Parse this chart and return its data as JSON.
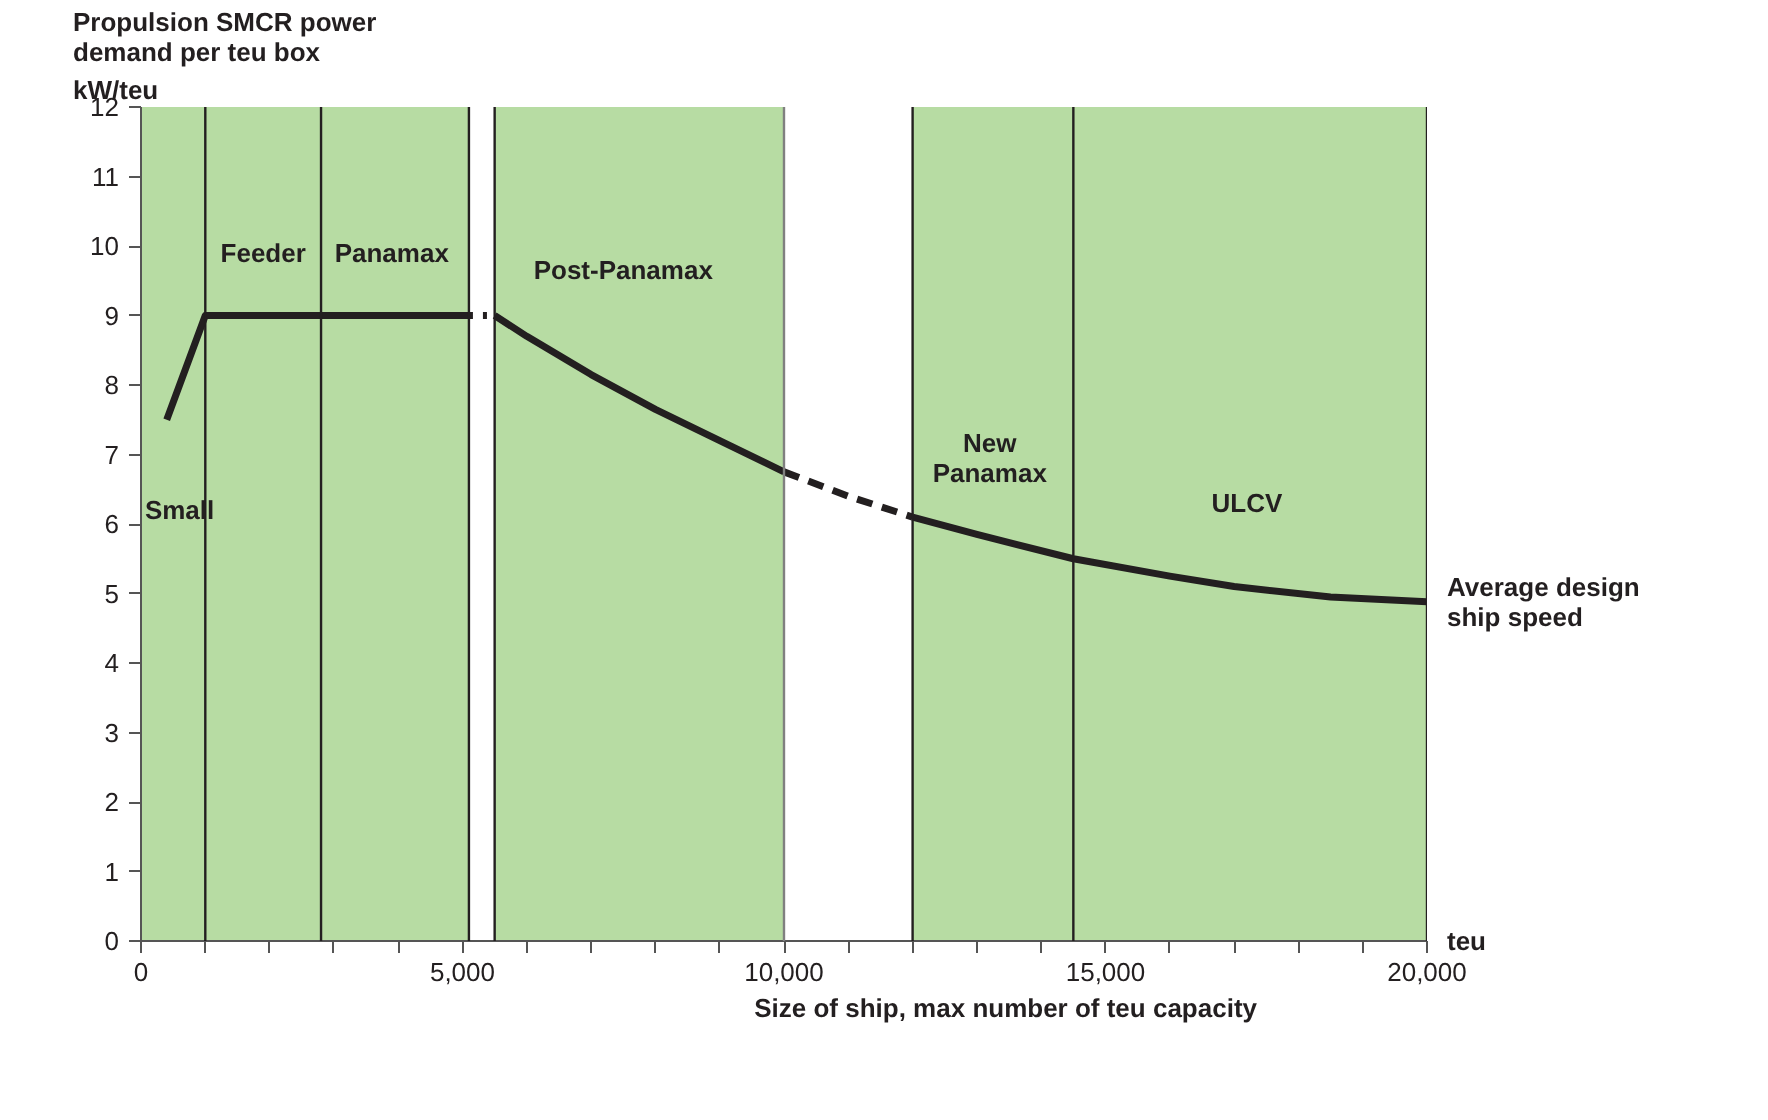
{
  "chart_data": {
    "type": "line",
    "ylabel": "Propulsion SMCR power\ndemand per teu box",
    "xlabel": "Size of ship, max number of teu capacity",
    "xlim": [
      0,
      20000
    ],
    "ylim": [
      0,
      12
    ],
    "xticks": [
      0,
      {
        "value": 1000,
        "label": null
      },
      {
        "value": 2000,
        "label": null
      },
      {
        "value": 3000,
        "label": null
      },
      {
        "value": 4000,
        "label": null
      },
      {
        "value": 5000,
        "label": "5,000"
      },
      {
        "value": 6000,
        "label": null
      },
      {
        "value": 7000,
        "label": null
      },
      {
        "value": 8000,
        "label": null
      },
      {
        "value": 9000,
        "label": null
      },
      {
        "value": 10000,
        "label": "10,000"
      },
      {
        "value": 11000,
        "label": null
      },
      {
        "value": 12000,
        "label": null
      },
      {
        "value": 13000,
        "label": null
      },
      {
        "value": 14000,
        "label": null
      },
      {
        "value": 15000,
        "label": "15,000"
      },
      {
        "value": 16000,
        "label": null
      },
      {
        "value": 17000,
        "label": null
      },
      {
        "value": 18000,
        "label": null
      },
      {
        "value": 19000,
        "label": null
      },
      {
        "value": 20000,
        "label": "20,000"
      }
    ],
    "yticks": [
      0,
      1,
      2,
      3,
      4,
      5,
      6,
      7,
      8,
      9,
      10,
      11,
      12
    ],
    "grid": false,
    "series": [
      {
        "color": "#231f20",
        "line_style": "solid",
        "x": [
          400,
          1000,
          5100
        ],
        "values": [
          7.5,
          9,
          9
        ]
      },
      {
        "color": "#231f20",
        "line_style": "dotted",
        "x": [
          5100,
          5500
        ],
        "values": [
          9,
          9
        ]
      },
      {
        "color": "#231f20",
        "line_style": "solid",
        "x": [
          5500,
          6000,
          7000,
          8000,
          9000,
          10000
        ],
        "values": [
          9,
          8.7,
          8.15,
          7.65,
          7.2,
          6.75
        ]
      },
      {
        "color": "#231f20",
        "line_style": "dashed",
        "x": [
          10000,
          11000,
          12000
        ],
        "values": [
          6.75,
          6.4,
          6.1
        ]
      },
      {
        "color": "#231f20",
        "line_style": "solid",
        "x": [
          12000,
          13000,
          14500,
          16000,
          17000,
          18500,
          20000
        ],
        "values": [
          6.1,
          5.85,
          5.5,
          5.25,
          5.1,
          4.95,
          4.88
        ]
      }
    ],
    "bands": [
      {
        "axis": "x",
        "from": 0,
        "to": 5100,
        "color": "#b7dca3"
      },
      {
        "axis": "x",
        "from": 5500,
        "to": 10000,
        "color": "#b7dca3"
      },
      {
        "axis": "x",
        "from": 12000,
        "to": 20000,
        "color": "#b7dca3"
      }
    ],
    "ref_lines": [
      {
        "axis": "x",
        "value": 1000,
        "color": "#231f20"
      },
      {
        "axis": "x",
        "value": 2800,
        "color": "#231f20"
      },
      {
        "axis": "x",
        "value": 5100,
        "color": "#231f20"
      },
      {
        "axis": "x",
        "value": 5500,
        "color": "#231f20"
      },
      {
        "axis": "x",
        "value": 10000,
        "color": "#808080"
      },
      {
        "axis": "x",
        "value": 12000,
        "color": "#231f20"
      },
      {
        "axis": "x",
        "value": 14500,
        "color": "#231f20"
      },
      {
        "axis": "x",
        "value": 20000,
        "color": "#231f20"
      }
    ],
    "annotations": [
      "kW/teu",
      "teu",
      "Small",
      "Feeder",
      "Panamax",
      "Post-Panamax",
      "New Panamax",
      "ULCV",
      {
        "text": "Average design ship speed",
        "x": 20000,
        "y": 4.88
      }
    ]
  }
}
